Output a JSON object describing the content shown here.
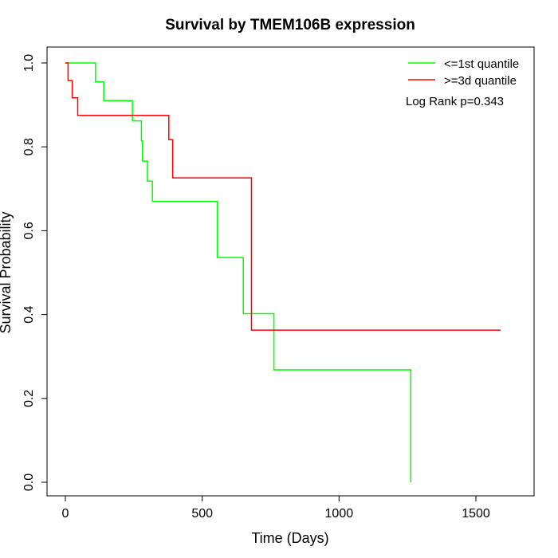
{
  "chart_data": {
    "type": "line",
    "step": true,
    "title": "Survival by TMEM106B expression",
    "xlabel": "Time (Days)",
    "ylabel": "Survival Probability",
    "xlim": [
      0,
      1650
    ],
    "ylim": [
      0,
      1
    ],
    "xticks": [
      0,
      500,
      1000,
      1500
    ],
    "xtick_labels": [
      "0",
      "500",
      "1000",
      "1500"
    ],
    "yticks": [
      0.0,
      0.2,
      0.4,
      0.6,
      0.8,
      1.0
    ],
    "ytick_labels": [
      "0.0",
      "0.2",
      "0.4",
      "0.6",
      "0.8",
      "1.0"
    ],
    "legend_position": "top-right",
    "annotation": "Log Rank p=0.343",
    "series": [
      {
        "name": "<=1st quantile",
        "color": "#00ff00",
        "points": [
          [
            0,
            1.0
          ],
          [
            110,
            1.0
          ],
          [
            110,
            0.955
          ],
          [
            140,
            0.955
          ],
          [
            140,
            0.91
          ],
          [
            245,
            0.91
          ],
          [
            245,
            0.862
          ],
          [
            278,
            0.862
          ],
          [
            278,
            0.814
          ],
          [
            282,
            0.814
          ],
          [
            282,
            0.766
          ],
          [
            300,
            0.766
          ],
          [
            300,
            0.718
          ],
          [
            318,
            0.718
          ],
          [
            318,
            0.67
          ],
          [
            555,
            0.67
          ],
          [
            555,
            0.536
          ],
          [
            650,
            0.536
          ],
          [
            650,
            0.402
          ],
          [
            762,
            0.402
          ],
          [
            762,
            0.268
          ],
          [
            1262,
            0.268
          ],
          [
            1262,
            0.0
          ]
        ]
      },
      {
        "name": ">=3d quantile",
        "color": "#ff0000",
        "points": [
          [
            0,
            1.0
          ],
          [
            10,
            1.0
          ],
          [
            10,
            0.958
          ],
          [
            25,
            0.958
          ],
          [
            25,
            0.917
          ],
          [
            45,
            0.917
          ],
          [
            45,
            0.875
          ],
          [
            378,
            0.875
          ],
          [
            378,
            0.817
          ],
          [
            392,
            0.817
          ],
          [
            392,
            0.726
          ],
          [
            680,
            0.726
          ],
          [
            680,
            0.363
          ],
          [
            1590,
            0.363
          ]
        ]
      }
    ]
  }
}
